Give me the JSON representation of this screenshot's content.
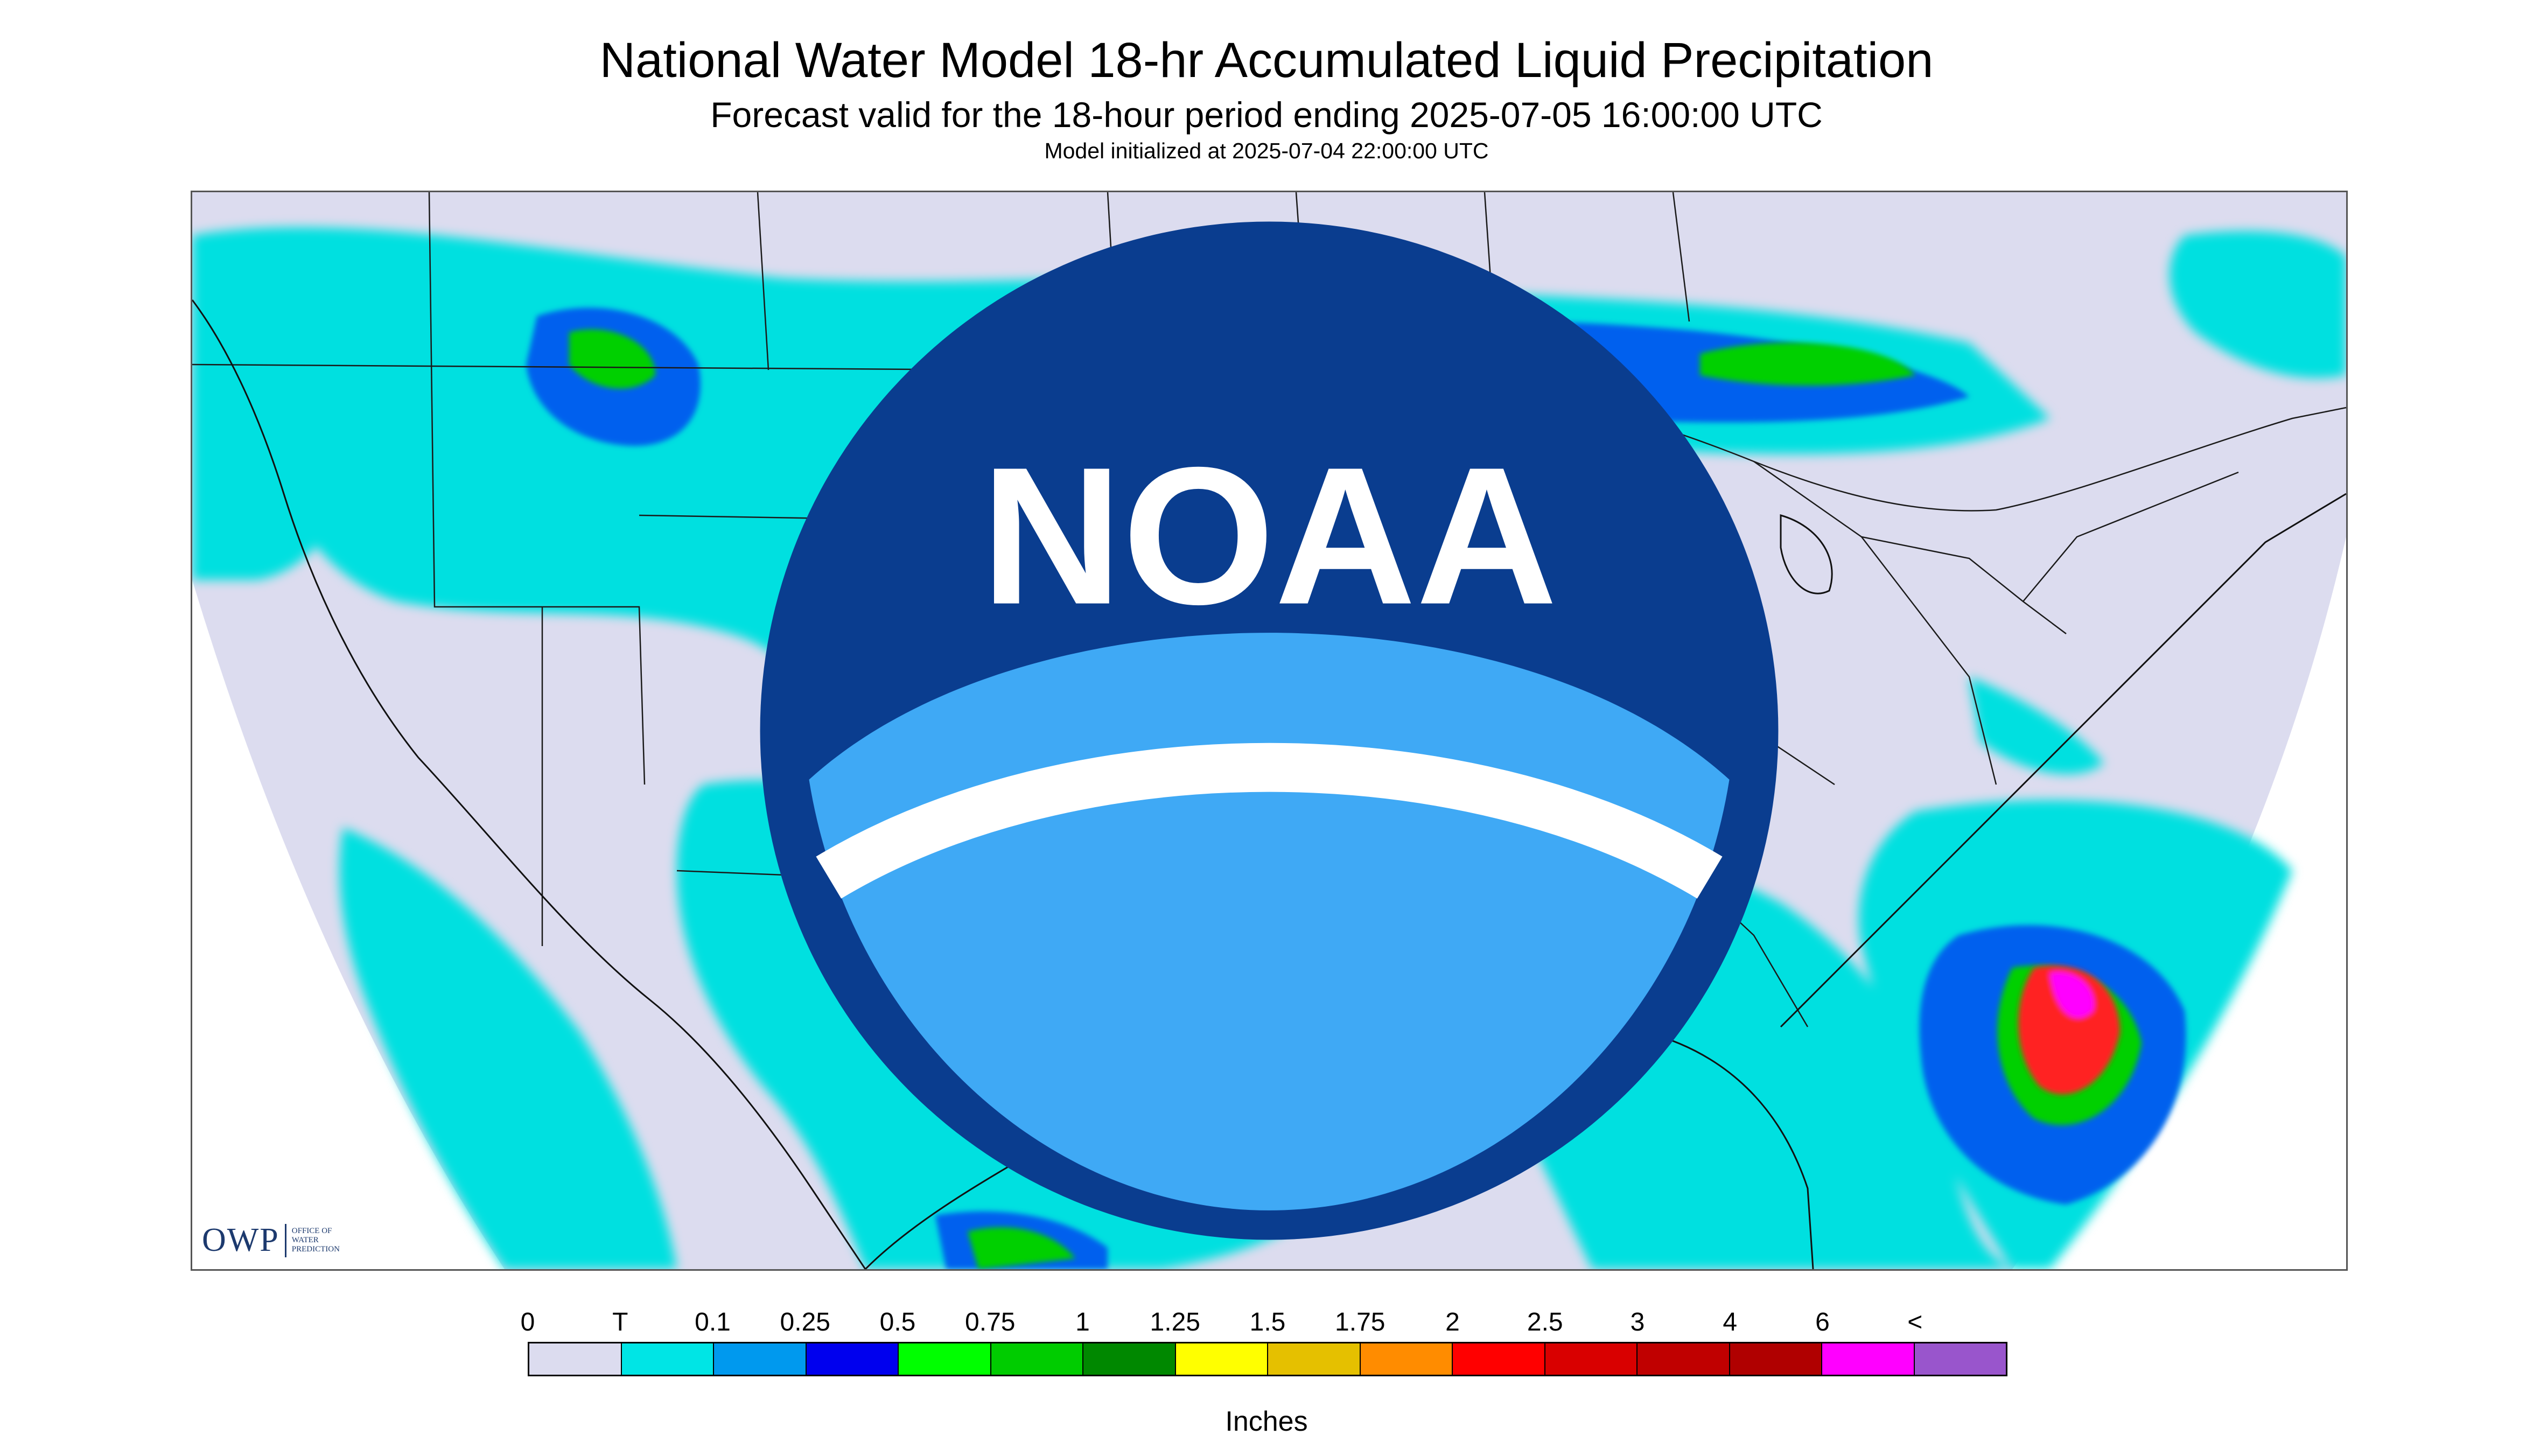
{
  "header": {
    "title": "National Water Model 18-hr Accumulated Liquid Precipitation",
    "subtitle": "Forecast valid for the 18-hour period ending 2025-07-05 16:00:00 UTC",
    "init": "Model initialized at 2025-07-04 22:00:00 UTC"
  },
  "map": {
    "background_color": "#dcdcef",
    "outside_color": "#ffffff",
    "boundary_color": "#1a1a1a"
  },
  "logos": {
    "owp_text": "OWP",
    "owp_sub_1": "OFFICE OF",
    "owp_sub_2": "WATER",
    "owp_sub_3": "PREDICTION",
    "noaa_text": "NOAA"
  },
  "legend": {
    "labels": [
      "0",
      "T",
      "0.1",
      "0.25",
      "0.5",
      "0.75",
      "1",
      "1.25",
      "1.5",
      "1.75",
      "2",
      "2.5",
      "3",
      "4",
      "6",
      "<"
    ],
    "colors": [
      "#dcdcef",
      "#00e5e5",
      "#0099ee",
      "#0000ee",
      "#00ff00",
      "#00cc00",
      "#008800",
      "#ffff00",
      "#e5c000",
      "#ff8c00",
      "#ff0000",
      "#d90000",
      "#c00000",
      "#b00000",
      "#ff00ff",
      "#9955cc"
    ],
    "units": "Inches"
  }
}
